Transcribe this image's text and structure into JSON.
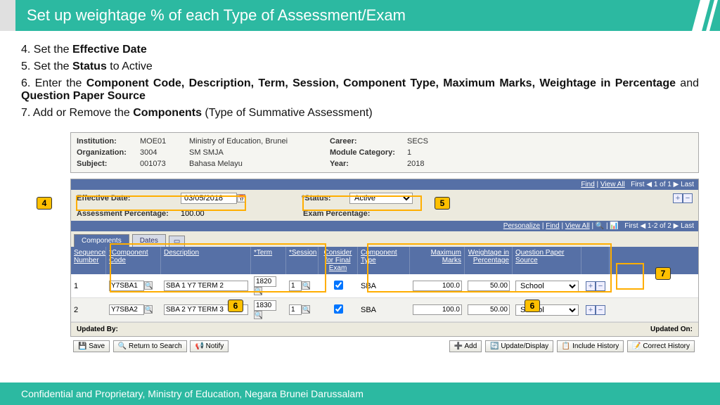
{
  "page": {
    "title": "Set up weightage % of each Type of Assessment/Exam",
    "footer": "Confidential and Proprietary, Ministry of Education, Negara Brunei Darussalam"
  },
  "steps": {
    "s4": "4. Set the ",
    "s4b": "Effective Date",
    "s5": "5. Set the ",
    "s5b": "Status",
    "s5c": " to Active",
    "s6": "6. Enter the ",
    "s6b": "Component Code, Description, Term, Session, Component Type, Maximum Marks, Weightage in Percentage",
    "s6c": " and ",
    "s6d": "Question Paper Source",
    "s7": "7. Add or Remove the ",
    "s7b": "Components",
    "s7c": " (Type of Summative Assessment)"
  },
  "info": {
    "institution_label": "Institution:",
    "institution_code": "MOE01",
    "institution_name": "Ministry of Education, Brunei",
    "org_label": "Organization:",
    "org_code": "3004",
    "org_name": "SM SMJA",
    "subject_label": "Subject:",
    "subject_code": "001073",
    "subject_name": "Bahasa Melayu",
    "career_label": "Career:",
    "career_value": "SECS",
    "modcat_label": "Module Category:",
    "modcat_value": "1",
    "year_label": "Year:",
    "year_value": "2018"
  },
  "form": {
    "effdate_label": "Effective Date:",
    "effdate_value": "03/05/2018",
    "status_label": "*Status:",
    "status_value": "Active",
    "assess_pct_label": "Assessment Percentage:",
    "assess_pct_value": "100.00",
    "exam_pct_label": "Exam Percentage:"
  },
  "toolbar": {
    "find": "Find",
    "viewall": "View All",
    "first": "First",
    "counter": "1 of 1",
    "counter2": "1-2 of 2",
    "last": "Last",
    "personalize": "Personalize"
  },
  "tabs": {
    "t1": "Components",
    "t2": "Dates"
  },
  "headers": {
    "seq": "Sequence Number",
    "code": "*Component Code",
    "desc": "Description",
    "term": "*Term",
    "sess": "*Session",
    "cons": "Consider for Final Exam",
    "type": "Component Type",
    "max": "Maximum Marks",
    "wgt": "Weightage in Percentage",
    "qps": "Question Paper Source"
  },
  "rows": [
    {
      "seq": "1",
      "code": "Y7SBA1",
      "desc": "SBA 1 Y7 TERM 2",
      "term": "1820",
      "sess": "1",
      "cons": true,
      "type": "SBA",
      "max": "100.0",
      "wgt": "50.00",
      "qps": "School"
    },
    {
      "seq": "2",
      "code": "Y7SBA2",
      "desc": "SBA 2 Y7 TERM 3",
      "term": "1830",
      "sess": "1",
      "cons": true,
      "type": "SBA",
      "max": "100.0",
      "wgt": "50.00",
      "qps": "School"
    }
  ],
  "bottom": {
    "updated_by": "Updated By:",
    "updated_on": "Updated On:"
  },
  "actions": {
    "save": "Save",
    "return": "Return to Search",
    "notify": "Notify",
    "add": "Add",
    "update": "Update/Display",
    "incl": "Include History",
    "correct": "Correct History"
  },
  "callouts": {
    "c4": "4",
    "c5": "5",
    "c6": "6",
    "c7": "7"
  }
}
